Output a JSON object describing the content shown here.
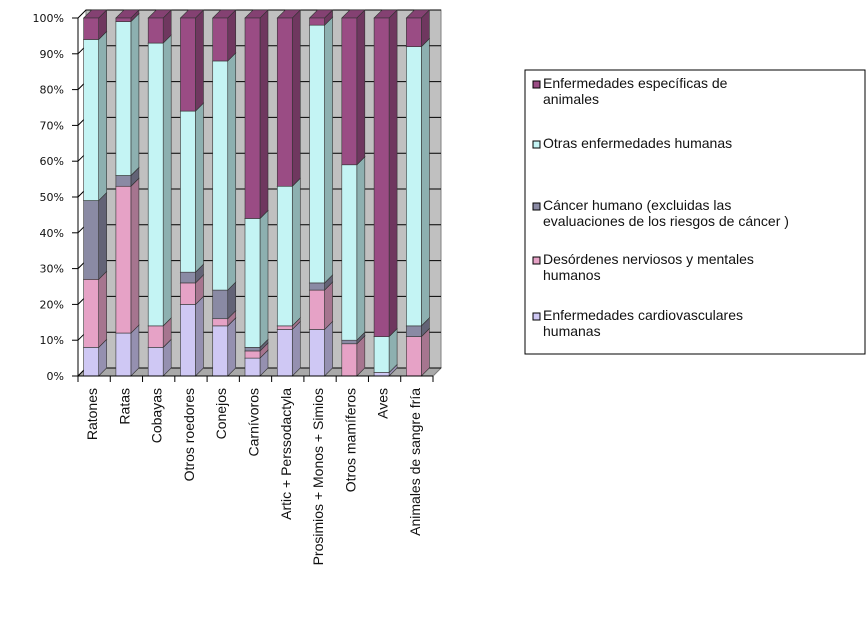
{
  "chart_data": {
    "type": "bar",
    "stacked": true,
    "percent": true,
    "ylim": [
      0,
      100
    ],
    "y_ticks": [
      "0%",
      "10%",
      "20%",
      "30%",
      "40%",
      "50%",
      "60%",
      "70%",
      "80%",
      "90%",
      "100%"
    ],
    "categories": [
      "Ratones",
      "Ratas",
      "Cobayas",
      "Otros roedores",
      "Conejos",
      "Carnívoros",
      "Artic + Perssodactyla",
      "Prosimios + Monos + Simios",
      "Otros mamíferos",
      "Aves",
      "Animales de sangre fría"
    ],
    "series": [
      {
        "name": "Enfermedades cardiovasculares humanas",
        "color": "#cfc8f4",
        "values": [
          8,
          12,
          8,
          20,
          14,
          5,
          13,
          13,
          0,
          1,
          0
        ]
      },
      {
        "name": "Desórdenes nerviosos y mentales humanos",
        "color": "#e6a2c6",
        "values": [
          19,
          41,
          6,
          6,
          2,
          2,
          1,
          11,
          9,
          0,
          11
        ]
      },
      {
        "name": "Cáncer humano (excluidas las evaluaciones de los riesgos de cáncer)",
        "color": "#8a8aa4",
        "values": [
          22,
          3,
          0,
          3,
          8,
          1,
          0,
          2,
          1,
          0,
          3
        ]
      },
      {
        "name": "Otras enfermedades humanas",
        "color": "#c4f4f4",
        "values": [
          45,
          43,
          79,
          45,
          64,
          36,
          39,
          72,
          49,
          10,
          78
        ]
      },
      {
        "name": "Enfermedades específicas de animales",
        "color": "#9a4c84",
        "values": [
          6,
          1,
          7,
          26,
          12,
          56,
          47,
          2,
          41,
          89,
          8
        ]
      }
    ],
    "legend": {
      "placement": "right",
      "entries": [
        "Enfermedades específicas de animales",
        "Otras enfermedades humanas",
        "Cáncer humano (excluidas las evaluaciones de los riesgos de cáncer )",
        "Desórdenes nerviosos y mentales humanos",
        "Enfermedades cardiovasculares humanas"
      ]
    }
  }
}
